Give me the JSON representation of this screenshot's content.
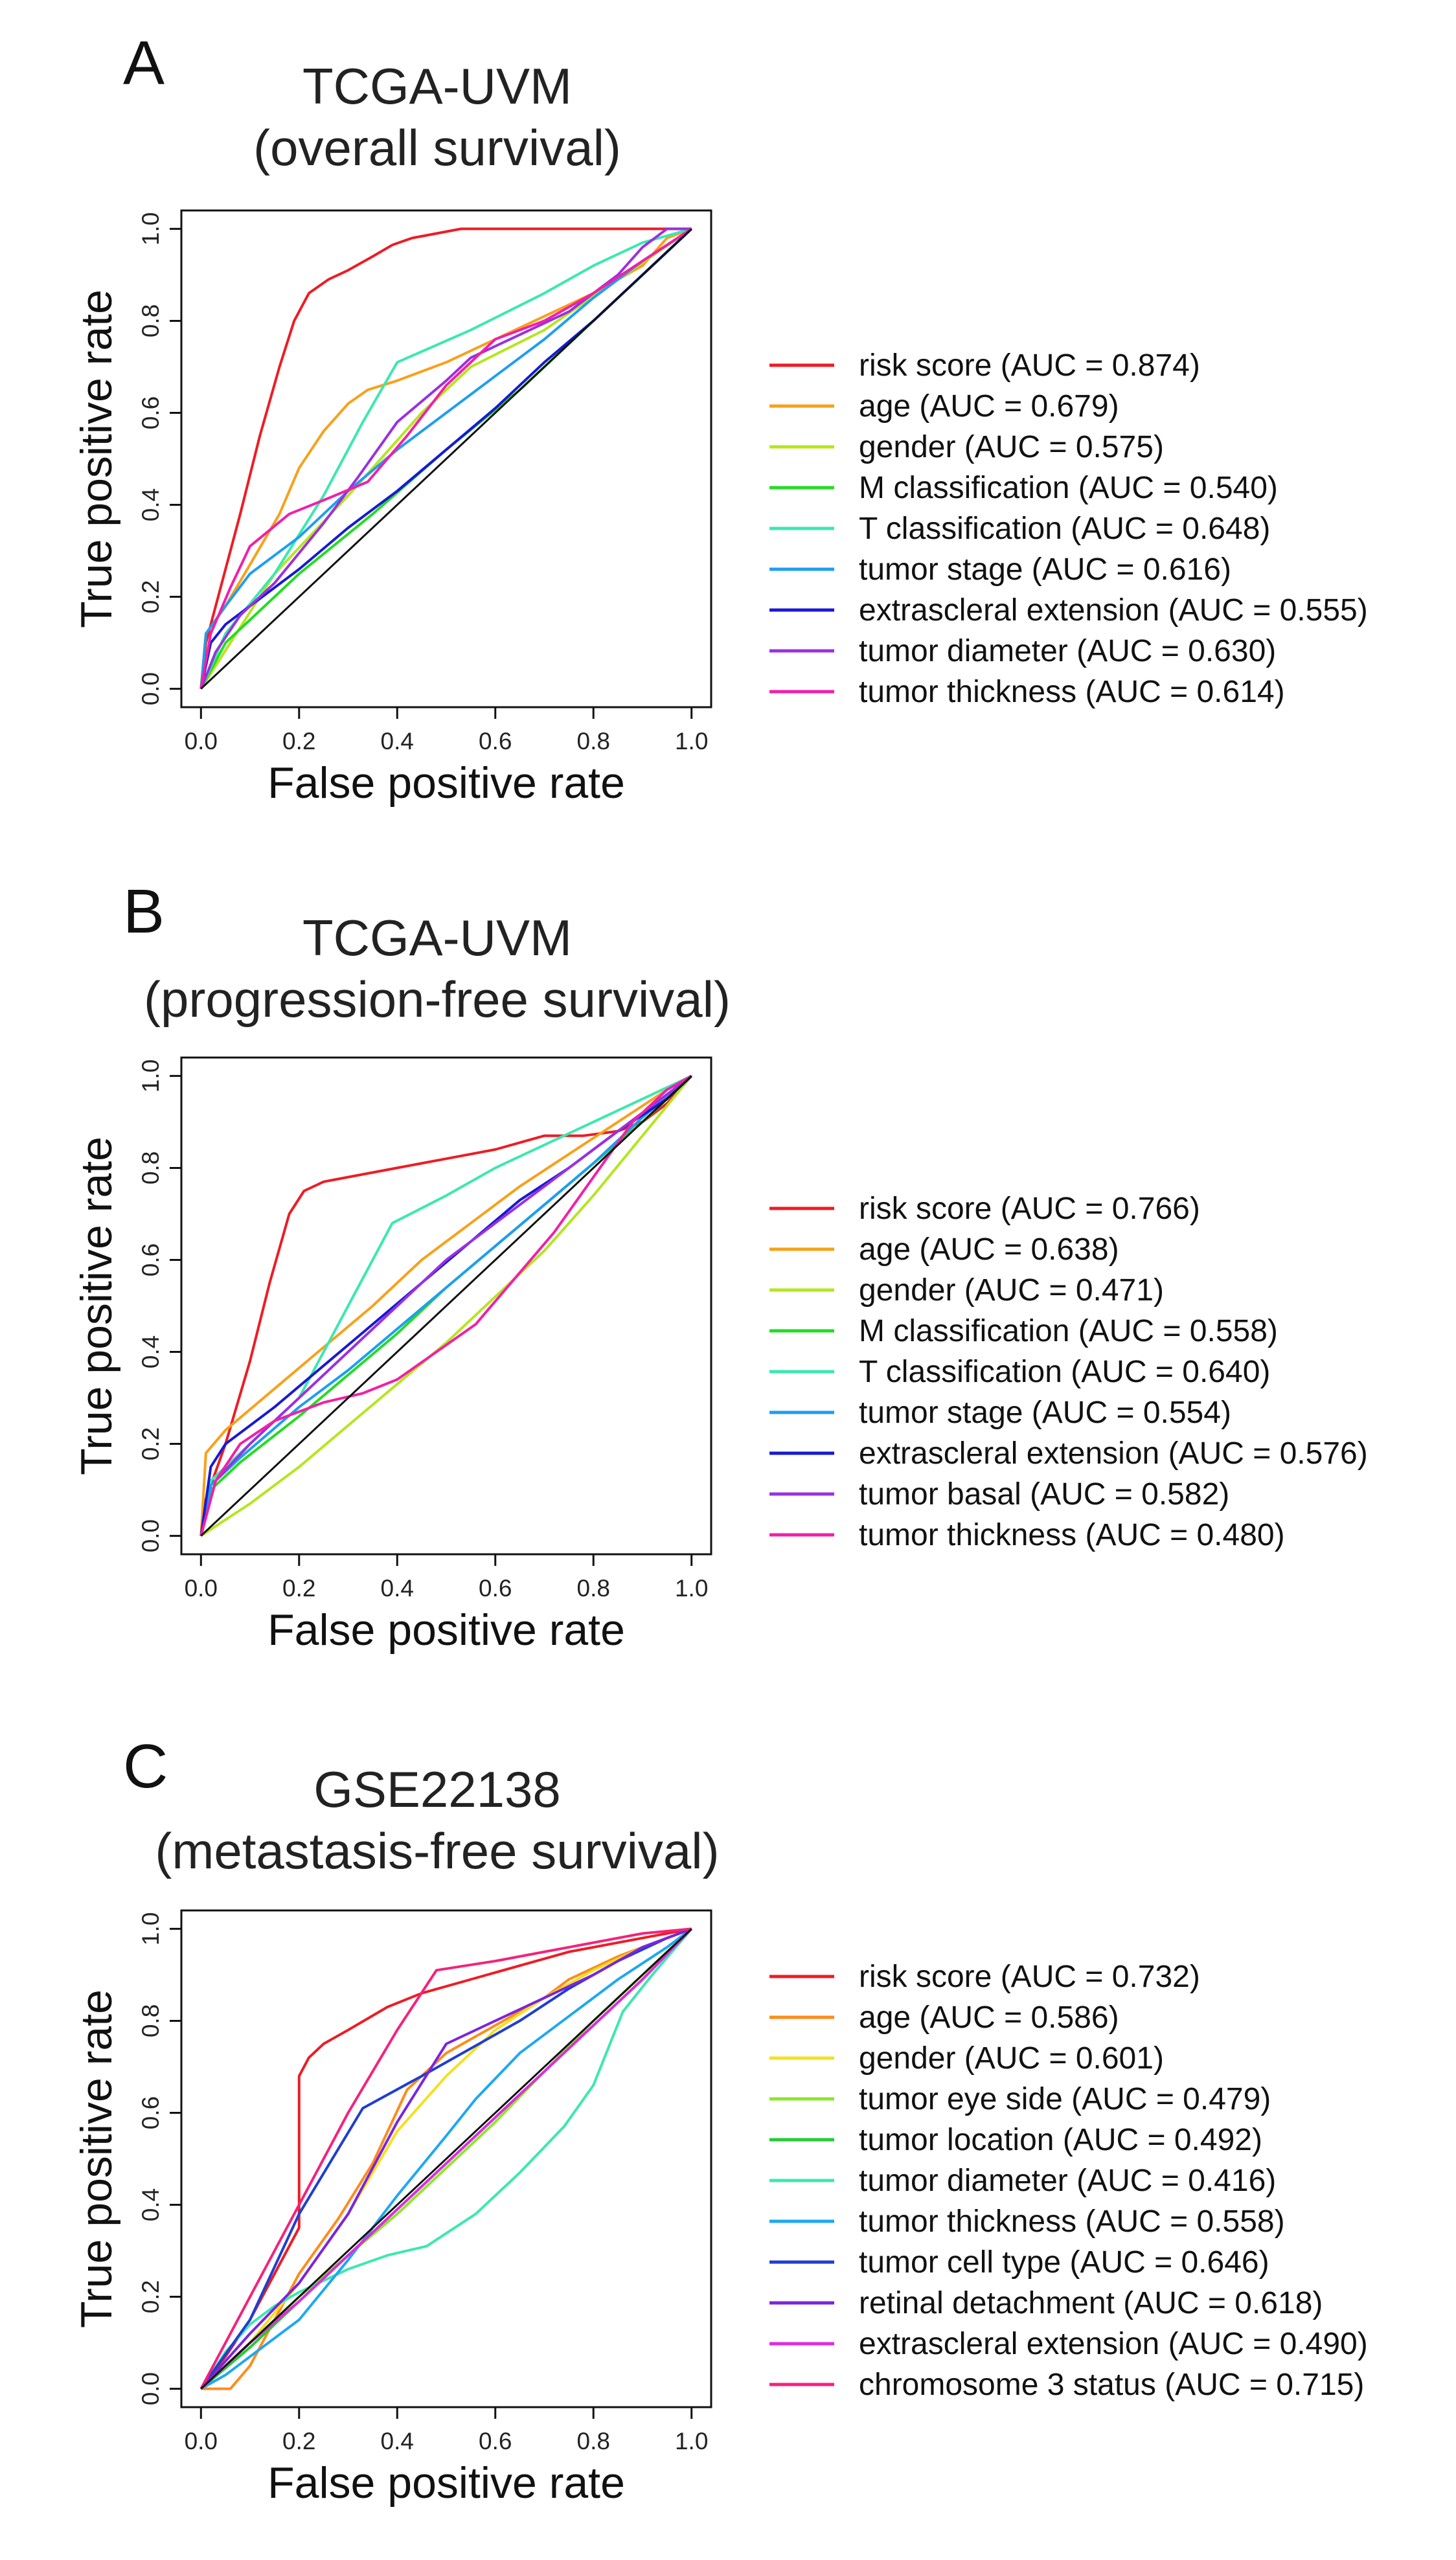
{
  "chart_data": [
    {
      "type": "line",
      "panel": "A",
      "title": [
        "TCGA-UVM",
        "(overall survival)"
      ],
      "xlabel": "False positive rate",
      "ylabel": "True positive rate",
      "xlim": [
        0,
        1
      ],
      "ylim": [
        0,
        1
      ],
      "ticks": [
        "0.0",
        "0.2",
        "0.4",
        "0.6",
        "0.8",
        "1.0"
      ],
      "legend_position": "right",
      "series": [
        {
          "name": "risk score (AUC = 0.874)",
          "color": "#ee1c24",
          "x": [
            0,
            0.01,
            0.04,
            0.08,
            0.12,
            0.16,
            0.19,
            0.22,
            0.26,
            0.3,
            0.35,
            0.39,
            0.43,
            0.48,
            0.53,
            0.6,
            0.8,
            1.0
          ],
          "y": [
            0,
            0.1,
            0.22,
            0.38,
            0.55,
            0.7,
            0.8,
            0.86,
            0.89,
            0.91,
            0.94,
            0.965,
            0.98,
            0.99,
            1.0,
            1.0,
            1.0,
            1.0
          ]
        },
        {
          "name": "age (AUC = 0.679)",
          "color": "#f7a11a",
          "x": [
            0,
            0.01,
            0.05,
            0.1,
            0.16,
            0.2,
            0.25,
            0.3,
            0.34,
            0.4,
            0.5,
            0.6,
            0.7,
            0.8,
            0.9,
            0.95,
            1.0
          ],
          "y": [
            0,
            0.12,
            0.18,
            0.27,
            0.38,
            0.48,
            0.56,
            0.62,
            0.65,
            0.67,
            0.71,
            0.76,
            0.81,
            0.86,
            0.92,
            0.98,
            1.0
          ]
        },
        {
          "name": "gender (AUC = 0.575)",
          "color": "#b5e61d",
          "x": [
            0,
            0.15,
            0.3,
            0.45,
            0.55,
            0.7,
            0.85,
            1.0
          ],
          "y": [
            0,
            0.25,
            0.42,
            0.6,
            0.7,
            0.78,
            0.89,
            1.0
          ]
        },
        {
          "name": "M classification (AUC = 0.540)",
          "color": "#22dd22",
          "x": [
            0,
            0.05,
            0.2,
            0.35,
            0.5,
            0.65,
            0.8,
            0.9,
            1.0
          ],
          "y": [
            0,
            0.1,
            0.25,
            0.38,
            0.52,
            0.65,
            0.8,
            0.9,
            1.0
          ]
        },
        {
          "name": "T classification (AUC = 0.648)",
          "color": "#3be8b0",
          "x": [
            0,
            0.05,
            0.15,
            0.25,
            0.33,
            0.4,
            0.55,
            0.7,
            0.8,
            0.9,
            1.0
          ],
          "y": [
            0,
            0.12,
            0.25,
            0.42,
            0.58,
            0.71,
            0.78,
            0.86,
            0.92,
            0.97,
            1.0
          ]
        },
        {
          "name": "tumor stage (AUC = 0.616)",
          "color": "#1e9ef0",
          "x": [
            0,
            0.01,
            0.05,
            0.1,
            0.2,
            0.3,
            0.4,
            0.5,
            0.6,
            0.7,
            0.8,
            0.9,
            1.0
          ],
          "y": [
            0,
            0.12,
            0.18,
            0.25,
            0.33,
            0.43,
            0.52,
            0.6,
            0.68,
            0.76,
            0.85,
            0.93,
            1.0
          ]
        },
        {
          "name": "extrascleral extension (AUC = 0.555)",
          "color": "#1919d2",
          "x": [
            0,
            0.02,
            0.05,
            0.1,
            0.2,
            0.3,
            0.4,
            0.5,
            0.6,
            0.7,
            0.8,
            0.9,
            1.0
          ],
          "y": [
            0,
            0.1,
            0.14,
            0.18,
            0.26,
            0.35,
            0.43,
            0.52,
            0.61,
            0.71,
            0.8,
            0.9,
            1.0
          ]
        },
        {
          "name": "tumor diameter (AUC = 0.630)",
          "color": "#9b30e0",
          "x": [
            0,
            0.03,
            0.08,
            0.15,
            0.25,
            0.32,
            0.4,
            0.5,
            0.55,
            0.65,
            0.75,
            0.85,
            0.9,
            0.95,
            1.0
          ],
          "y": [
            0,
            0.08,
            0.16,
            0.23,
            0.36,
            0.46,
            0.58,
            0.67,
            0.72,
            0.77,
            0.82,
            0.9,
            0.96,
            1.0,
            1.0
          ]
        },
        {
          "name": "tumor thickness (AUC = 0.614)",
          "color": "#f21fa8",
          "x": [
            0,
            0.02,
            0.06,
            0.1,
            0.18,
            0.25,
            0.34,
            0.42,
            0.5,
            0.6,
            0.7,
            0.8,
            0.9,
            1.0
          ],
          "y": [
            0,
            0.12,
            0.22,
            0.31,
            0.38,
            0.41,
            0.45,
            0.55,
            0.66,
            0.76,
            0.8,
            0.86,
            0.93,
            1.0
          ]
        }
      ]
    },
    {
      "type": "line",
      "panel": "B",
      "title": [
        "TCGA-UVM",
        "(progression-free survival)"
      ],
      "xlabel": "False positive rate",
      "ylabel": "True positive rate",
      "xlim": [
        0,
        1
      ],
      "ylim": [
        0,
        1
      ],
      "ticks": [
        "0.0",
        "0.2",
        "0.4",
        "0.6",
        "0.8",
        "1.0"
      ],
      "legend_position": "right",
      "series": [
        {
          "name": "risk score (AUC = 0.766)",
          "color": "#ee1c24",
          "x": [
            0,
            0.01,
            0.05,
            0.1,
            0.14,
            0.18,
            0.21,
            0.25,
            0.3,
            0.4,
            0.5,
            0.6,
            0.7,
            0.78,
            0.85,
            0.9,
            0.95,
            1.0
          ],
          "y": [
            0,
            0.08,
            0.2,
            0.38,
            0.55,
            0.7,
            0.75,
            0.77,
            0.78,
            0.8,
            0.82,
            0.84,
            0.87,
            0.87,
            0.88,
            0.9,
            0.94,
            1.0
          ]
        },
        {
          "name": "age (AUC = 0.638)",
          "color": "#f7a11a",
          "x": [
            0,
            0.01,
            0.05,
            0.15,
            0.25,
            0.35,
            0.45,
            0.55,
            0.65,
            0.75,
            0.85,
            0.95,
            1.0
          ],
          "y": [
            0,
            0.18,
            0.23,
            0.32,
            0.41,
            0.5,
            0.6,
            0.68,
            0.76,
            0.83,
            0.9,
            0.97,
            1.0
          ]
        },
        {
          "name": "gender (AUC = 0.471)",
          "color": "#b5e61d",
          "x": [
            0,
            0.1,
            0.2,
            0.3,
            0.4,
            0.5,
            0.6,
            0.7,
            0.8,
            0.9,
            1.0
          ],
          "y": [
            0,
            0.07,
            0.15,
            0.24,
            0.33,
            0.42,
            0.52,
            0.62,
            0.74,
            0.87,
            1.0
          ]
        },
        {
          "name": "M classification (AUC = 0.558)",
          "color": "#22dd22",
          "x": [
            0,
            0.02,
            0.08,
            0.2,
            0.3,
            0.4,
            0.5,
            0.6,
            0.7,
            0.8,
            0.9,
            1.0
          ],
          "y": [
            0,
            0.1,
            0.16,
            0.26,
            0.35,
            0.44,
            0.54,
            0.63,
            0.72,
            0.81,
            0.9,
            1.0
          ]
        },
        {
          "name": "T classification (AUC = 0.640)",
          "color": "#3be8b0",
          "x": [
            0,
            0.02,
            0.1,
            0.2,
            0.3,
            0.39,
            0.5,
            0.6,
            0.7,
            0.8,
            0.9,
            1.0
          ],
          "y": [
            0,
            0.12,
            0.2,
            0.3,
            0.5,
            0.68,
            0.74,
            0.8,
            0.85,
            0.9,
            0.95,
            1.0
          ]
        },
        {
          "name": "tumor stage (AUC = 0.554)",
          "color": "#1e9ef0",
          "x": [
            0,
            0.02,
            0.08,
            0.2,
            0.3,
            0.4,
            0.5,
            0.6,
            0.7,
            0.8,
            0.9,
            1.0
          ],
          "y": [
            0,
            0.11,
            0.17,
            0.28,
            0.36,
            0.45,
            0.54,
            0.63,
            0.72,
            0.81,
            0.91,
            1.0
          ]
        },
        {
          "name": "extrascleral extension (AUC = 0.576)",
          "color": "#1919d2",
          "x": [
            0,
            0.02,
            0.05,
            0.15,
            0.25,
            0.35,
            0.45,
            0.55,
            0.65,
            0.75,
            0.85,
            0.95,
            1.0
          ],
          "y": [
            0,
            0.15,
            0.2,
            0.28,
            0.37,
            0.46,
            0.55,
            0.64,
            0.73,
            0.8,
            0.88,
            0.95,
            1.0
          ]
        },
        {
          "name": "tumor basal (AUC = 0.582)",
          "color": "#9b30e0",
          "x": [
            0,
            0.03,
            0.1,
            0.2,
            0.3,
            0.4,
            0.5,
            0.6,
            0.7,
            0.8,
            0.9,
            1.0
          ],
          "y": [
            0,
            0.12,
            0.2,
            0.3,
            0.4,
            0.5,
            0.6,
            0.68,
            0.76,
            0.84,
            0.92,
            1.0
          ]
        },
        {
          "name": "tumor thickness (AUC = 0.480)",
          "color": "#f21fa8",
          "x": [
            0,
            0.03,
            0.08,
            0.15,
            0.25,
            0.33,
            0.4,
            0.48,
            0.56,
            0.64,
            0.72,
            0.8,
            0.88,
            0.95,
            1.0
          ],
          "y": [
            0,
            0.12,
            0.2,
            0.25,
            0.29,
            0.31,
            0.34,
            0.4,
            0.46,
            0.56,
            0.66,
            0.78,
            0.9,
            0.97,
            1.0
          ]
        }
      ]
    },
    {
      "type": "line",
      "panel": "C",
      "title": [
        "GSE22138",
        "(metastasis-free survival)"
      ],
      "xlabel": "False positive rate",
      "ylabel": "True positive rate",
      "xlim": [
        0,
        1
      ],
      "ylim": [
        0,
        1
      ],
      "ticks": [
        "0.0",
        "0.2",
        "0.4",
        "0.6",
        "0.8",
        "1.0"
      ],
      "legend_position": "right",
      "series": [
        {
          "name": "risk score (AUC = 0.732)",
          "color": "#ee1c24",
          "x": [
            0,
            0.05,
            0.1,
            0.15,
            0.2,
            0.2,
            0.22,
            0.25,
            0.3,
            0.38,
            0.45,
            0.55,
            0.65,
            0.75,
            0.85,
            0.95,
            1.0
          ],
          "y": [
            0,
            0.07,
            0.15,
            0.25,
            0.35,
            0.68,
            0.72,
            0.75,
            0.78,
            0.83,
            0.86,
            0.89,
            0.92,
            0.95,
            0.97,
            0.99,
            1.0
          ]
        },
        {
          "name": "age (AUC = 0.586)",
          "color": "#ff8c1a",
          "x": [
            0,
            0.06,
            0.1,
            0.15,
            0.2,
            0.28,
            0.35,
            0.42,
            0.5,
            0.6,
            0.7,
            0.75,
            0.85,
            0.95,
            1.0
          ],
          "y": [
            0,
            0.0,
            0.05,
            0.15,
            0.25,
            0.37,
            0.49,
            0.65,
            0.73,
            0.79,
            0.85,
            0.89,
            0.94,
            0.98,
            1.0
          ]
        },
        {
          "name": "gender (AUC = 0.601)",
          "color": "#f5e01d",
          "x": [
            0,
            0.1,
            0.2,
            0.3,
            0.4,
            0.5,
            0.6,
            0.7,
            0.8,
            0.9,
            1.0
          ],
          "y": [
            0,
            0.1,
            0.23,
            0.38,
            0.56,
            0.68,
            0.78,
            0.85,
            0.91,
            0.96,
            1.0
          ]
        },
        {
          "name": "tumor eye side (AUC = 0.479)",
          "color": "#8ee62a",
          "x": [
            0,
            0.1,
            0.2,
            0.3,
            0.4,
            0.5,
            0.6,
            0.7,
            0.8,
            0.9,
            1.0
          ],
          "y": [
            0,
            0.1,
            0.2,
            0.29,
            0.38,
            0.48,
            0.58,
            0.69,
            0.8,
            0.9,
            1.0
          ]
        },
        {
          "name": "tumor location (AUC = 0.492)",
          "color": "#22cc33",
          "x": [
            0,
            0.1,
            0.2,
            0.3,
            0.4,
            0.5,
            0.6,
            0.7,
            0.8,
            0.9,
            1.0
          ],
          "y": [
            0,
            0.09,
            0.19,
            0.29,
            0.39,
            0.49,
            0.59,
            0.69,
            0.79,
            0.89,
            1.0
          ]
        },
        {
          "name": "tumor diameter (AUC = 0.416)",
          "color": "#3be8b0",
          "x": [
            0,
            0.05,
            0.1,
            0.15,
            0.2,
            0.3,
            0.38,
            0.46,
            0.56,
            0.65,
            0.74,
            0.8,
            0.86,
            0.92,
            1.0
          ],
          "y": [
            0,
            0.08,
            0.14,
            0.18,
            0.21,
            0.26,
            0.29,
            0.31,
            0.38,
            0.47,
            0.57,
            0.66,
            0.82,
            0.9,
            1.0
          ]
        },
        {
          "name": "tumor thickness (AUC = 0.558)",
          "color": "#1ea8f0",
          "x": [
            0,
            0.05,
            0.1,
            0.2,
            0.3,
            0.4,
            0.5,
            0.56,
            0.65,
            0.75,
            0.85,
            0.95,
            1.0
          ],
          "y": [
            0,
            0.03,
            0.07,
            0.15,
            0.28,
            0.42,
            0.55,
            0.63,
            0.73,
            0.81,
            0.89,
            0.96,
            1.0
          ]
        },
        {
          "name": "tumor cell type (AUC = 0.646)",
          "color": "#1e3ed2",
          "x": [
            0,
            0.1,
            0.2,
            0.33,
            0.45,
            0.55,
            0.65,
            0.75,
            0.85,
            0.95,
            1.0
          ],
          "y": [
            0,
            0.15,
            0.38,
            0.61,
            0.68,
            0.74,
            0.8,
            0.87,
            0.93,
            0.98,
            1.0
          ]
        },
        {
          "name": "retinal detachment (AUC = 0.618)",
          "color": "#7b24e0",
          "x": [
            0,
            0.1,
            0.2,
            0.3,
            0.4,
            0.5,
            0.6,
            0.7,
            0.8,
            0.9,
            1.0
          ],
          "y": [
            0,
            0.12,
            0.23,
            0.38,
            0.58,
            0.75,
            0.8,
            0.85,
            0.9,
            0.96,
            1.0
          ]
        },
        {
          "name": "extrascleral extension (AUC = 0.490)",
          "color": "#e02be0",
          "x": [
            0,
            0.1,
            0.2,
            0.3,
            0.4,
            0.5,
            0.6,
            0.7,
            0.8,
            0.9,
            1.0
          ],
          "y": [
            0,
            0.1,
            0.19,
            0.29,
            0.39,
            0.49,
            0.59,
            0.69,
            0.79,
            0.89,
            1.0
          ]
        },
        {
          "name": "chromosome 3 status (AUC = 0.715)",
          "color": "#f5227a",
          "x": [
            0,
            0.1,
            0.2,
            0.3,
            0.4,
            0.48,
            0.6,
            0.7,
            0.8,
            0.9,
            1.0
          ],
          "y": [
            0,
            0.2,
            0.4,
            0.6,
            0.78,
            0.91,
            0.93,
            0.95,
            0.97,
            0.99,
            1.0
          ]
        }
      ]
    }
  ]
}
